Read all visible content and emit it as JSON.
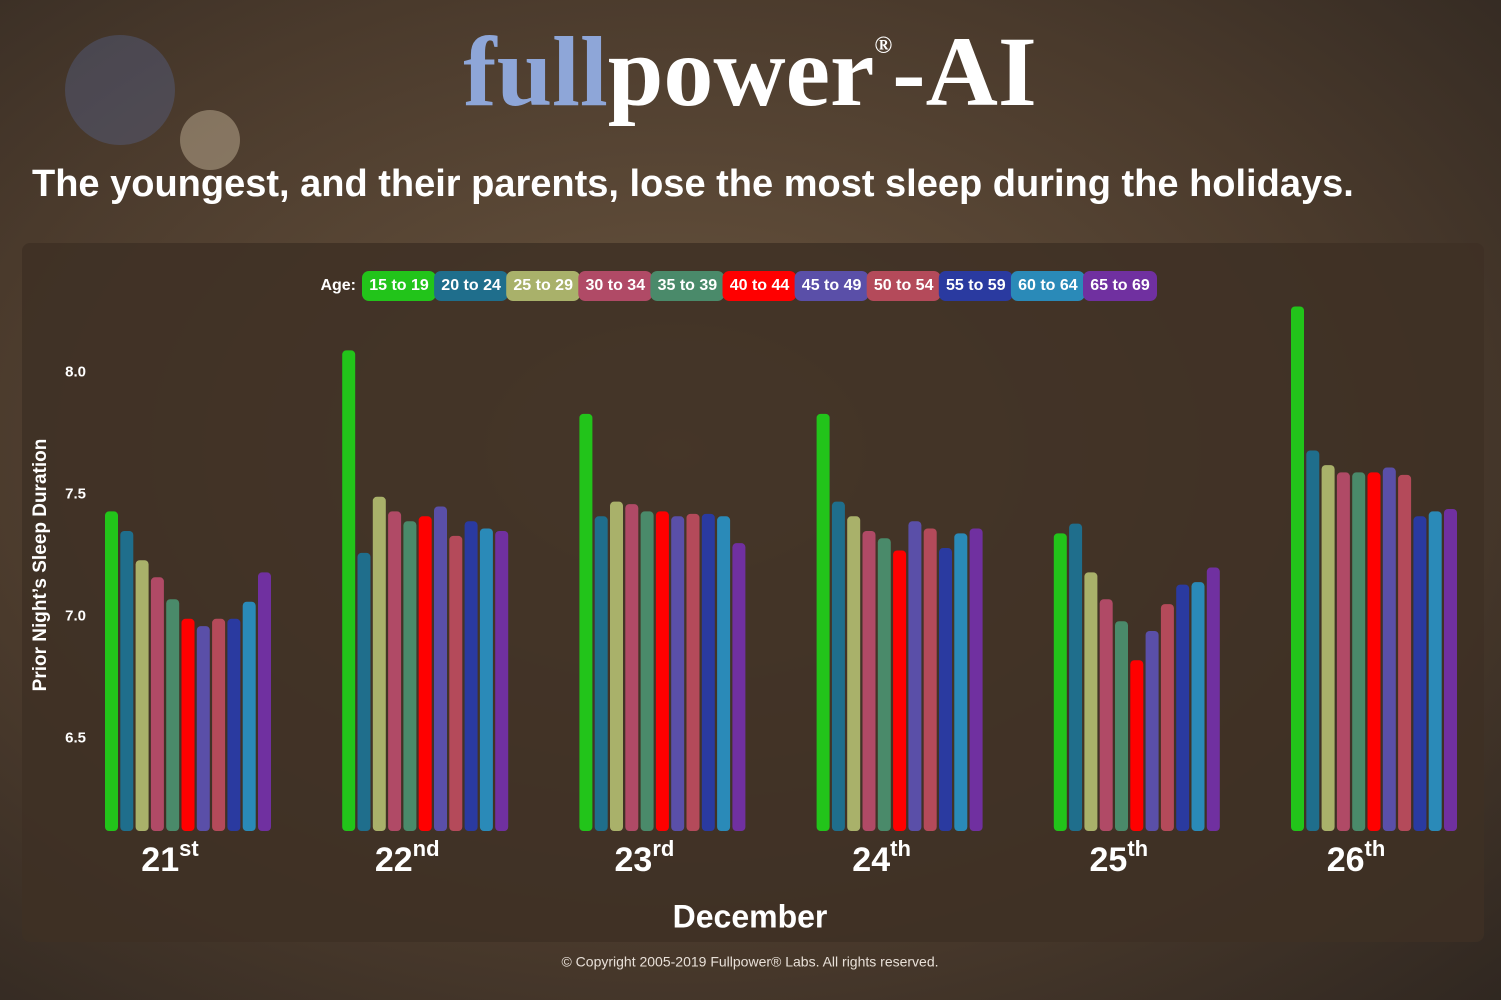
{
  "logo": {
    "part1": "full",
    "part2": "power",
    "mark": "®",
    "part3": "-AI"
  },
  "copyright": "© Copyright 2005-2019 Fullpower® Labs. All rights reserved.",
  "chart_data": {
    "type": "bar",
    "title": "The youngest, and their parents, lose the most sleep during the holidays.",
    "x_label": "December",
    "y_label": "Prior Night’s Sleep Duration",
    "legend_title": "Age:",
    "legend_position": "top",
    "categories": [
      "21",
      "22",
      "23",
      "24",
      "25",
      "26"
    ],
    "category_suffixes": [
      "st",
      "nd",
      "rd",
      "th",
      "th",
      "th"
    ],
    "ylim": [
      6.12,
      8.35
    ],
    "yticks": [
      6.5,
      {
        "value": 7,
        "label": "7.0"
      },
      7.5,
      {
        "value": 8,
        "label": "8.0"
      }
    ],
    "series": [
      {
        "name": "15 to 19",
        "color": "#22c41a",
        "values": [
          7.43,
          8.09,
          7.83,
          7.83,
          7.34,
          8.27
        ]
      },
      {
        "name": "20 to 24",
        "color": "#1f6e8c",
        "values": [
          7.35,
          7.26,
          7.41,
          7.47,
          7.38,
          7.68
        ]
      },
      {
        "name": "25 to 29",
        "color": "#a9b16a",
        "values": [
          7.23,
          7.49,
          7.47,
          7.41,
          7.18,
          7.62
        ]
      },
      {
        "name": "30 to 34",
        "color": "#b04a66",
        "values": [
          7.16,
          7.43,
          7.46,
          7.35,
          7.07,
          7.59
        ]
      },
      {
        "name": "35 to 39",
        "color": "#4a8a6a",
        "values": [
          7.07,
          7.39,
          7.43,
          7.32,
          6.98,
          7.59
        ]
      },
      {
        "name": "40 to 44",
        "color": "#ff0000",
        "values": [
          6.99,
          7.41,
          7.43,
          7.27,
          6.82,
          7.59
        ]
      },
      {
        "name": "45 to 49",
        "color": "#5a4fa8",
        "values": [
          6.96,
          7.45,
          7.41,
          7.39,
          6.94,
          7.61
        ]
      },
      {
        "name": "50 to 54",
        "color": "#b44a5a",
        "values": [
          6.99,
          7.33,
          7.42,
          7.36,
          7.05,
          7.58
        ]
      },
      {
        "name": "55 to 59",
        "color": "#2a3aa0",
        "values": [
          6.99,
          7.39,
          7.42,
          7.28,
          7.13,
          7.41
        ]
      },
      {
        "name": "60 to 64",
        "color": "#2a8ab8",
        "values": [
          7.06,
          7.36,
          7.41,
          7.34,
          7.14,
          7.43
        ]
      },
      {
        "name": "65 to 69",
        "color": "#7030a0",
        "values": [
          7.18,
          7.35,
          7.3,
          7.36,
          7.2,
          7.44
        ]
      }
    ]
  }
}
